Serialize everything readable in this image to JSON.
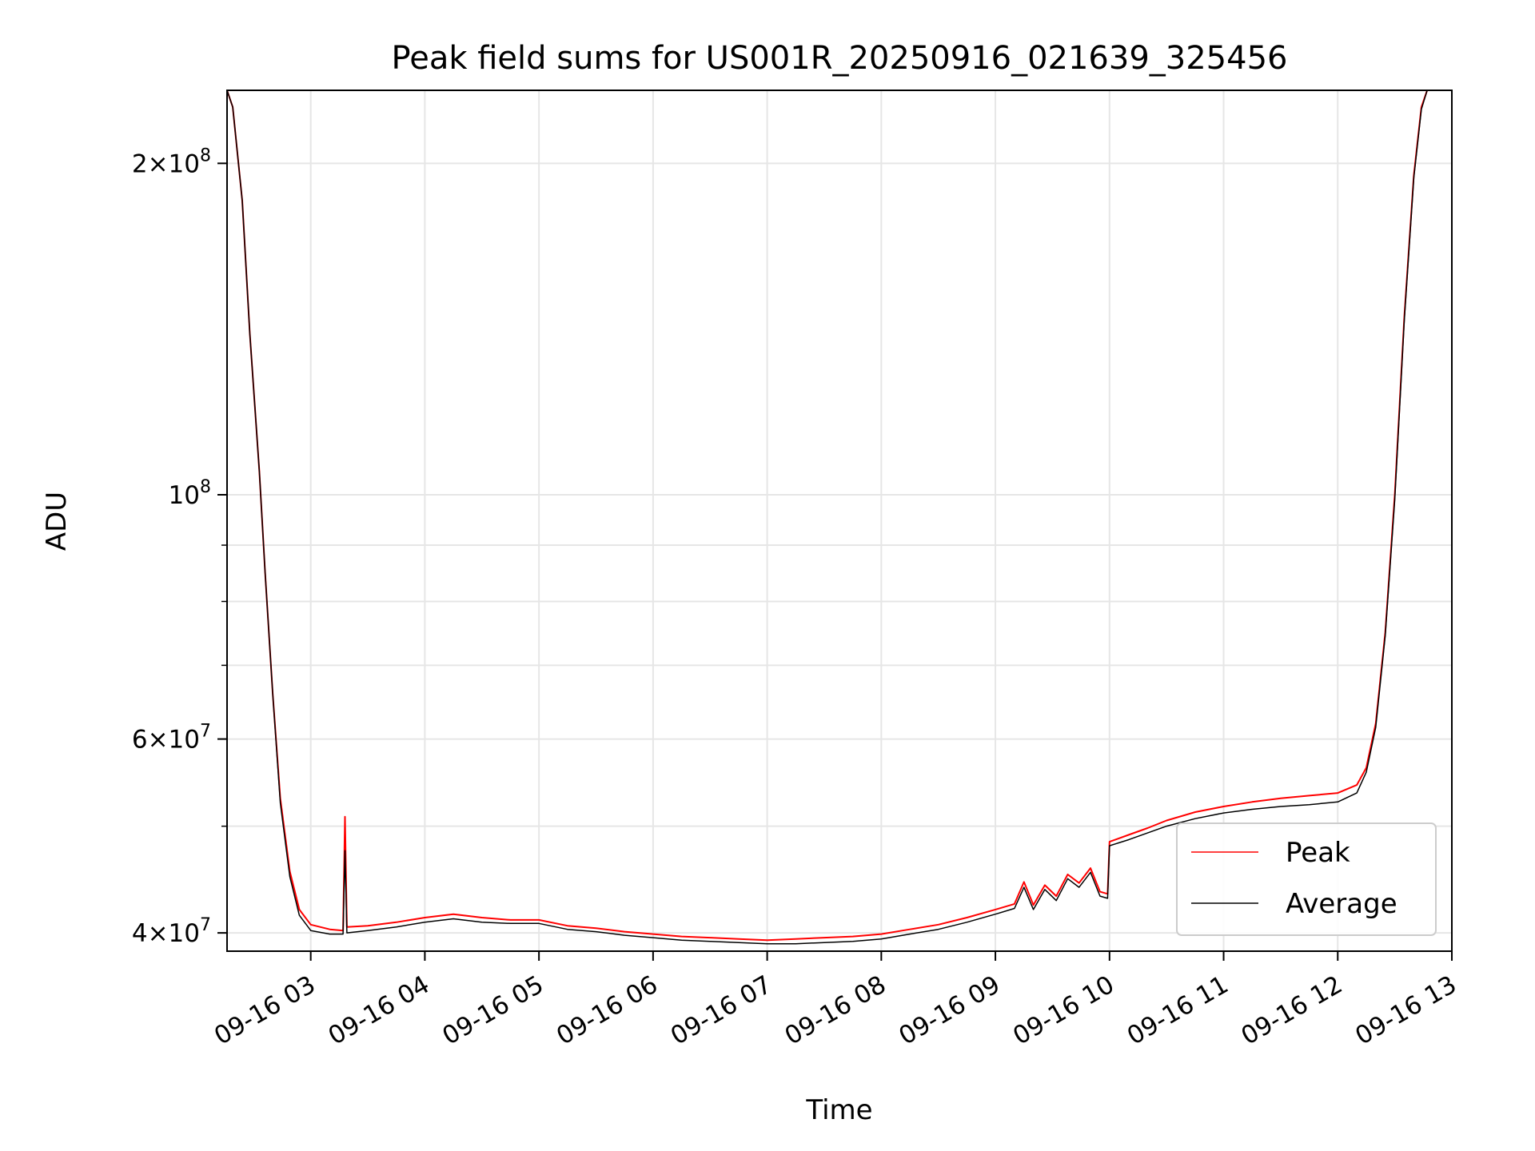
{
  "chart_data": {
    "type": "line",
    "title": "Peak field sums for US001R_20250916_021639_325456",
    "xlabel": "Time",
    "ylabel": "ADU",
    "y_scale": "log",
    "xlim": [
      "09-16 02:16",
      "09-16 13:00"
    ],
    "ylim": [
      38500000,
      233000000
    ],
    "grid": true,
    "legend_position": "lower-right",
    "x_tick_labels": [
      "09-16 03",
      "09-16 04",
      "09-16 05",
      "09-16 06",
      "09-16 07",
      "09-16 08",
      "09-16 09",
      "09-16 10",
      "09-16 11",
      "09-16 12",
      "09-16 13"
    ],
    "x_tick_hours": [
      3,
      4,
      5,
      6,
      7,
      8,
      9,
      10,
      11,
      12,
      13
    ],
    "y_ticks": [
      {
        "value": 40000000,
        "mantissa": "4",
        "exponent": "7"
      },
      {
        "value": 60000000,
        "mantissa": "6",
        "exponent": "7"
      },
      {
        "value": 100000000,
        "mantissa": "",
        "exponent": "8"
      },
      {
        "value": 200000000,
        "mantissa": "2",
        "exponent": "8"
      }
    ],
    "y_minor_ticks": [
      50000000,
      70000000,
      80000000,
      90000000
    ],
    "series": [
      {
        "name": "Peak",
        "color": "#ff0000",
        "points": [
          [
            "02:16",
            233000000
          ],
          [
            "02:19",
            225000000
          ],
          [
            "02:24",
            185000000
          ],
          [
            "02:28",
            140000000
          ],
          [
            "02:33",
            105000000
          ],
          [
            "02:36",
            85000000
          ],
          [
            "02:40",
            66000000
          ],
          [
            "02:44",
            53000000
          ],
          [
            "02:49",
            45500000
          ],
          [
            "02:54",
            42000000
          ],
          [
            "03:00",
            40700000
          ],
          [
            "03:10",
            40300000
          ],
          [
            "03:17",
            40200000
          ],
          [
            "03:18",
            51000000
          ],
          [
            "03:19",
            40500000
          ],
          [
            "03:30",
            40600000
          ],
          [
            "03:45",
            40900000
          ],
          [
            "04:00",
            41300000
          ],
          [
            "04:15",
            41600000
          ],
          [
            "04:30",
            41300000
          ],
          [
            "04:45",
            41100000
          ],
          [
            "05:00",
            41100000
          ],
          [
            "05:15",
            40600000
          ],
          [
            "05:30",
            40400000
          ],
          [
            "05:45",
            40100000
          ],
          [
            "06:00",
            39900000
          ],
          [
            "06:15",
            39700000
          ],
          [
            "06:30",
            39600000
          ],
          [
            "06:45",
            39500000
          ],
          [
            "07:00",
            39400000
          ],
          [
            "07:15",
            39500000
          ],
          [
            "07:30",
            39600000
          ],
          [
            "07:45",
            39700000
          ],
          [
            "08:00",
            39900000
          ],
          [
            "08:15",
            40300000
          ],
          [
            "08:30",
            40700000
          ],
          [
            "08:45",
            41300000
          ],
          [
            "09:00",
            42000000
          ],
          [
            "09:10",
            42500000
          ],
          [
            "09:15",
            44500000
          ],
          [
            "09:20",
            42400000
          ],
          [
            "09:26",
            44200000
          ],
          [
            "09:32",
            43200000
          ],
          [
            "09:38",
            45200000
          ],
          [
            "09:44",
            44400000
          ],
          [
            "09:50",
            45800000
          ],
          [
            "09:55",
            43600000
          ],
          [
            "09:59",
            43400000
          ],
          [
            "10:00",
            48400000
          ],
          [
            "10:10",
            49100000
          ],
          [
            "10:20",
            49800000
          ],
          [
            "10:30",
            50600000
          ],
          [
            "10:45",
            51500000
          ],
          [
            "11:00",
            52100000
          ],
          [
            "11:15",
            52600000
          ],
          [
            "11:30",
            53000000
          ],
          [
            "11:45",
            53300000
          ],
          [
            "12:00",
            53600000
          ],
          [
            "12:10",
            54500000
          ],
          [
            "12:15",
            56500000
          ],
          [
            "12:20",
            62000000
          ],
          [
            "12:25",
            75000000
          ],
          [
            "12:30",
            100000000
          ],
          [
            "12:35",
            145000000
          ],
          [
            "12:40",
            195000000
          ],
          [
            "12:44",
            225000000
          ],
          [
            "12:47",
            233000000
          ]
        ]
      },
      {
        "name": "Average",
        "color": "#000000",
        "points": [
          [
            "02:16",
            233000000
          ],
          [
            "02:19",
            225000000
          ],
          [
            "02:24",
            185000000
          ],
          [
            "02:28",
            140000000
          ],
          [
            "02:33",
            105000000
          ],
          [
            "02:36",
            85000000
          ],
          [
            "02:40",
            66000000
          ],
          [
            "02:44",
            52500000
          ],
          [
            "02:49",
            45000000
          ],
          [
            "02:54",
            41500000
          ],
          [
            "03:00",
            40200000
          ],
          [
            "03:10",
            39900000
          ],
          [
            "03:17",
            39900000
          ],
          [
            "03:18",
            47500000
          ],
          [
            "03:19",
            40000000
          ],
          [
            "03:30",
            40200000
          ],
          [
            "03:45",
            40500000
          ],
          [
            "04:00",
            40900000
          ],
          [
            "04:15",
            41200000
          ],
          [
            "04:30",
            40900000
          ],
          [
            "04:45",
            40800000
          ],
          [
            "05:00",
            40800000
          ],
          [
            "05:15",
            40300000
          ],
          [
            "05:30",
            40100000
          ],
          [
            "05:45",
            39800000
          ],
          [
            "06:00",
            39600000
          ],
          [
            "06:15",
            39400000
          ],
          [
            "06:30",
            39300000
          ],
          [
            "06:45",
            39200000
          ],
          [
            "07:00",
            39100000
          ],
          [
            "07:15",
            39100000
          ],
          [
            "07:30",
            39200000
          ],
          [
            "07:45",
            39300000
          ],
          [
            "08:00",
            39500000
          ],
          [
            "08:15",
            39900000
          ],
          [
            "08:30",
            40300000
          ],
          [
            "08:45",
            40900000
          ],
          [
            "09:00",
            41600000
          ],
          [
            "09:10",
            42100000
          ],
          [
            "09:15",
            44000000
          ],
          [
            "09:20",
            42000000
          ],
          [
            "09:26",
            43800000
          ],
          [
            "09:32",
            42800000
          ],
          [
            "09:38",
            44800000
          ],
          [
            "09:44",
            44000000
          ],
          [
            "09:50",
            45400000
          ],
          [
            "09:55",
            43200000
          ],
          [
            "09:59",
            43000000
          ],
          [
            "10:00",
            48000000
          ],
          [
            "10:10",
            48600000
          ],
          [
            "10:20",
            49300000
          ],
          [
            "10:30",
            50000000
          ],
          [
            "10:45",
            50800000
          ],
          [
            "11:00",
            51400000
          ],
          [
            "11:15",
            51800000
          ],
          [
            "11:30",
            52100000
          ],
          [
            "11:45",
            52300000
          ],
          [
            "12:00",
            52600000
          ],
          [
            "12:10",
            53600000
          ],
          [
            "12:15",
            56000000
          ],
          [
            "12:20",
            61500000
          ],
          [
            "12:25",
            74500000
          ],
          [
            "12:30",
            99000000
          ],
          [
            "12:35",
            144000000
          ],
          [
            "12:40",
            194000000
          ],
          [
            "12:44",
            224000000
          ],
          [
            "12:47",
            233000000
          ]
        ]
      }
    ]
  }
}
